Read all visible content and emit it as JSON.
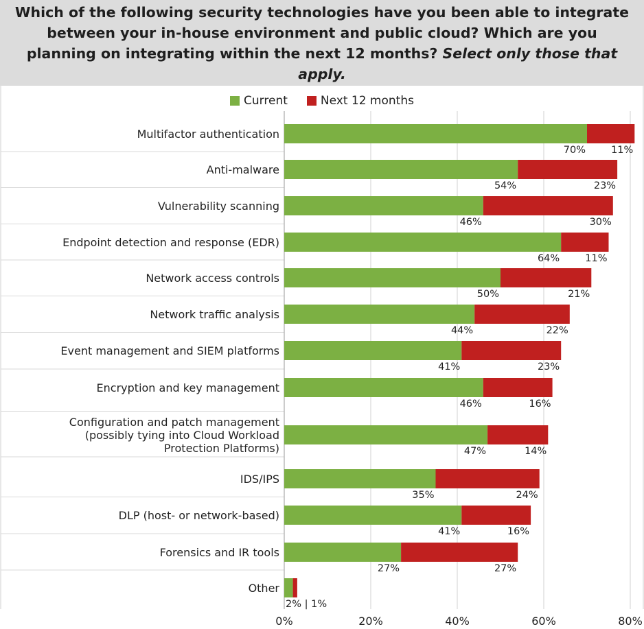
{
  "title": {
    "main": "Which of the following security technologies have you been able to integrate between your in-house environment and public cloud? Which are you planning on integrating within the next 12 months?",
    "emphasis": "Select only those that apply."
  },
  "colors": {
    "current": "#7cb043",
    "next": "#c0201f",
    "title_bg": "#dcdcdc",
    "grid": "#d0d0d0"
  },
  "chart_data": {
    "type": "bar",
    "orientation": "horizontal",
    "stacked": true,
    "categories": [
      [
        "Multifactor authentication"
      ],
      [
        "Anti-malware"
      ],
      [
        "Vulnerability scanning"
      ],
      [
        "Endpoint detection and response (EDR)"
      ],
      [
        "Network access controls"
      ],
      [
        "Network traffic analysis"
      ],
      [
        "Event management and SIEM platforms"
      ],
      [
        "Encryption and key management"
      ],
      [
        "Configuration and patch management",
        "(possibly tying into Cloud Workload",
        "Protection Platforms)"
      ],
      [
        "IDS/IPS"
      ],
      [
        "DLP (host- or network-based)"
      ],
      [
        "Forensics and IR tools"
      ],
      [
        "Other"
      ]
    ],
    "series": [
      {
        "name": "Current",
        "values": [
          70,
          54,
          46,
          64,
          50,
          44,
          41,
          46,
          47,
          35,
          41,
          27,
          2
        ]
      },
      {
        "name": "Next 12 months",
        "values": [
          11,
          23,
          30,
          11,
          21,
          22,
          23,
          16,
          14,
          24,
          16,
          27,
          1
        ]
      }
    ],
    "value_suffix": "%",
    "combined_label_separator": " | ",
    "xlim": [
      0,
      80
    ],
    "xticks": [
      0,
      20,
      40,
      60,
      80
    ],
    "tick_labels": [
      "0%",
      "20%",
      "40%",
      "60%",
      "80%"
    ],
    "grid": true,
    "legend_position": "top-center"
  }
}
